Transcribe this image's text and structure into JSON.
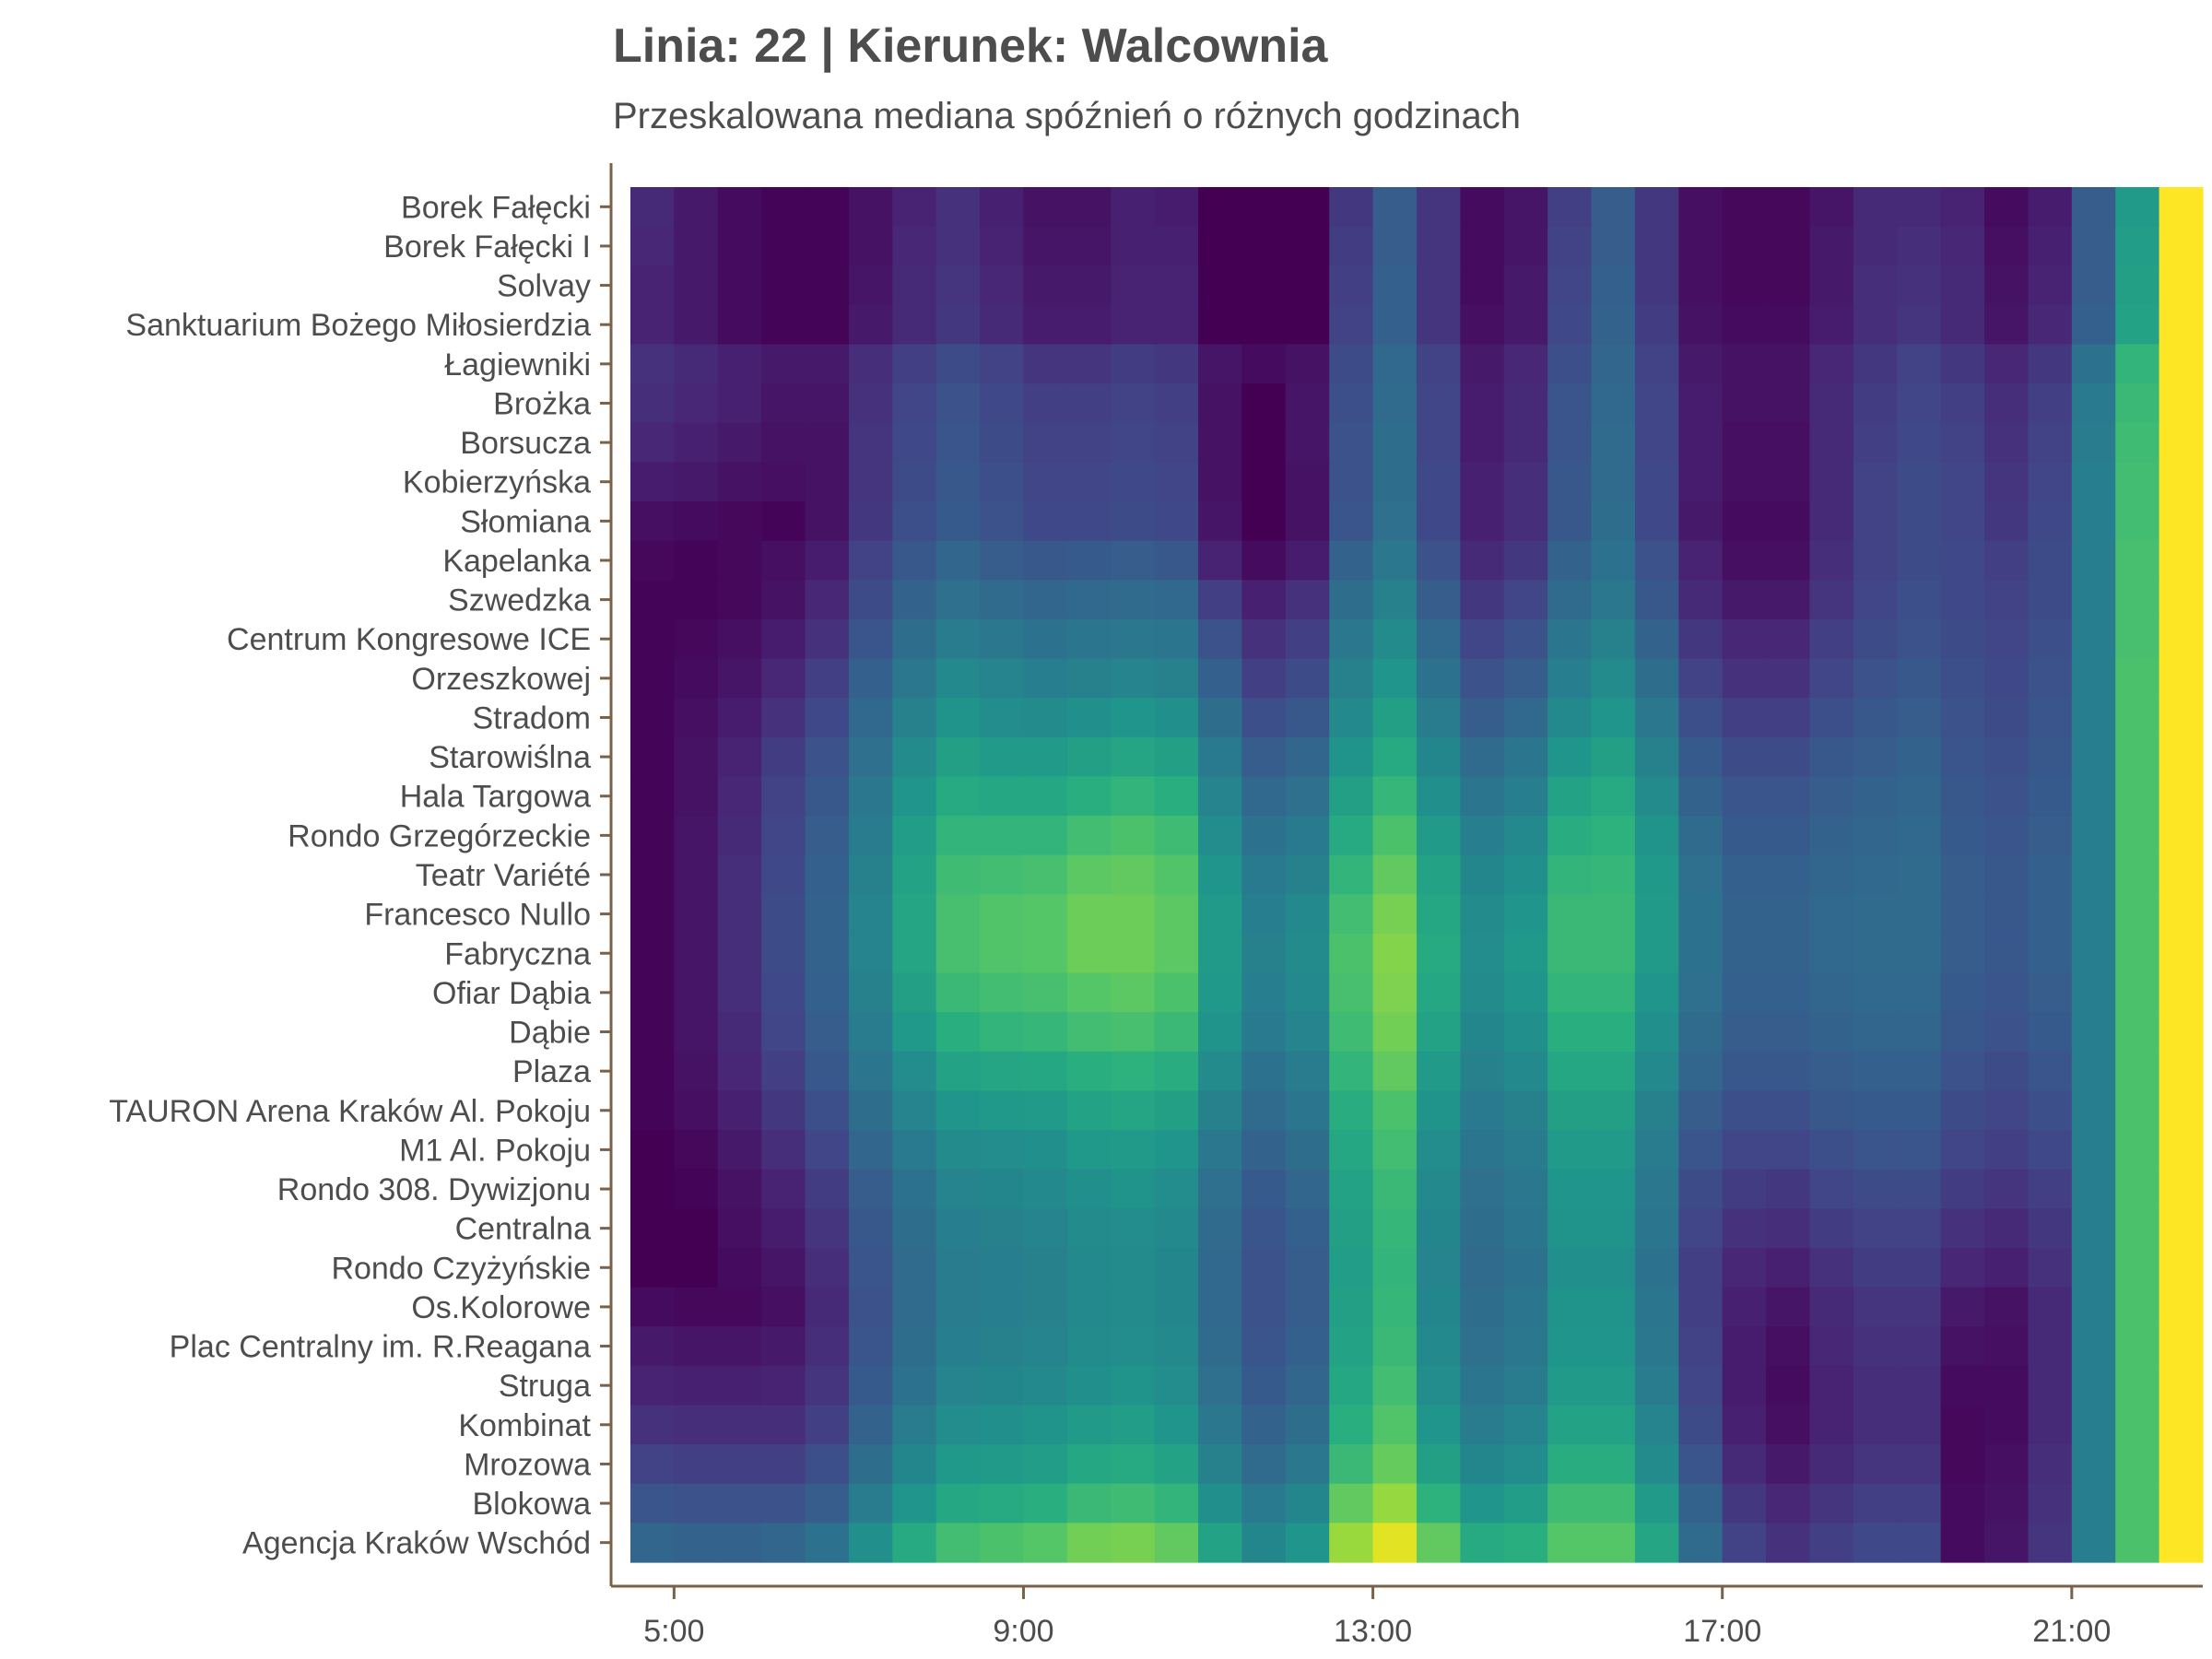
{
  "title": "Linia: 22 | Kierunek: Walcownia",
  "subtitle": "Przeskalowana mediana spóźnień o różnych godzinach",
  "colors": {
    "axis": "#7a6148",
    "text": "#4d4d4d",
    "colormap": "viridis"
  },
  "chart_data": {
    "type": "heatmap",
    "title": "Linia: 22 | Kierunek: Walcownia",
    "subtitle": "Przeskalowana mediana spóźnień o różnych godzinach",
    "xlabel": "",
    "ylabel": "",
    "x_start_hour": 4.5,
    "x_step_hours": 0.5,
    "xlim": [
      4.3,
      22.5
    ],
    "x_ticks": [
      5,
      9,
      13,
      17,
      21
    ],
    "x_tick_labels": [
      "5:00",
      "9:00",
      "13:00",
      "17:00",
      "21:00"
    ],
    "stops": [
      "Borek Fałęcki",
      "Borek Fałęcki I",
      "Solvay",
      "Sanktuarium Bożego Miłosierdzia",
      "Łagiewniki",
      "Brożka",
      "Borsucza",
      "Kobierzyńska",
      "Słomiana",
      "Kapelanka",
      "Szwedzka",
      "Centrum Kongresowe ICE",
      "Orzeszkowej",
      "Stradom",
      "Starowiślna",
      "Hala Targowa",
      "Rondo Grzegórzeckie",
      "Teatr Variété",
      "Francesco Nullo",
      "Fabryczna",
      "Ofiar Dąbia",
      "Dąbie",
      "Plaza",
      "TAURON Arena Kraków Al. Pokoju",
      "M1 Al. Pokoju",
      "Rondo 308. Dywizjonu",
      "Centralna",
      "Rondo Czyżyńskie",
      "Os.Kolorowe",
      "Plac Centralny im. R.Reagana",
      "Struga",
      "Kombinat",
      "Mrozowa",
      "Blokowa",
      "Agencja Kraków Wschód"
    ],
    "value_range": [
      0,
      1
    ],
    "values": [
      [
        0.12,
        0.07,
        0.03,
        0.01,
        0.01,
        0.05,
        0.1,
        0.14,
        0.09,
        0.05,
        0.05,
        0.09,
        0.08,
        0.0,
        0.0,
        0.0,
        0.16,
        0.28,
        0.15,
        0.03,
        0.06,
        0.18,
        0.28,
        0.16,
        0.04,
        0.02,
        0.02,
        0.06,
        0.12,
        0.12,
        0.1,
        0.03,
        0.08,
        0.28,
        0.52,
        1.0
      ],
      [
        0.11,
        0.07,
        0.03,
        0.01,
        0.01,
        0.05,
        0.11,
        0.14,
        0.1,
        0.06,
        0.06,
        0.09,
        0.09,
        0.0,
        0.0,
        0.0,
        0.17,
        0.28,
        0.15,
        0.03,
        0.06,
        0.19,
        0.28,
        0.16,
        0.04,
        0.02,
        0.02,
        0.07,
        0.12,
        0.13,
        0.11,
        0.04,
        0.09,
        0.28,
        0.53,
        1.0
      ],
      [
        0.1,
        0.07,
        0.03,
        0.01,
        0.01,
        0.06,
        0.12,
        0.15,
        0.11,
        0.07,
        0.07,
        0.1,
        0.1,
        0.0,
        0.0,
        0.0,
        0.18,
        0.29,
        0.15,
        0.03,
        0.07,
        0.2,
        0.29,
        0.16,
        0.04,
        0.02,
        0.02,
        0.07,
        0.13,
        0.14,
        0.12,
        0.05,
        0.1,
        0.28,
        0.54,
        1.0
      ],
      [
        0.1,
        0.07,
        0.03,
        0.01,
        0.01,
        0.07,
        0.12,
        0.16,
        0.12,
        0.08,
        0.08,
        0.1,
        0.1,
        0.0,
        0.0,
        0.0,
        0.19,
        0.29,
        0.15,
        0.04,
        0.07,
        0.21,
        0.3,
        0.17,
        0.05,
        0.03,
        0.03,
        0.08,
        0.13,
        0.15,
        0.12,
        0.06,
        0.11,
        0.29,
        0.55,
        1.0
      ],
      [
        0.14,
        0.12,
        0.09,
        0.07,
        0.07,
        0.13,
        0.18,
        0.22,
        0.19,
        0.15,
        0.15,
        0.17,
        0.16,
        0.06,
        0.03,
        0.05,
        0.22,
        0.32,
        0.19,
        0.07,
        0.11,
        0.23,
        0.31,
        0.19,
        0.07,
        0.05,
        0.05,
        0.11,
        0.16,
        0.19,
        0.16,
        0.11,
        0.16,
        0.36,
        0.62,
        1.0
      ],
      [
        0.13,
        0.11,
        0.09,
        0.06,
        0.06,
        0.14,
        0.2,
        0.24,
        0.21,
        0.18,
        0.18,
        0.19,
        0.18,
        0.05,
        0.0,
        0.06,
        0.23,
        0.33,
        0.2,
        0.08,
        0.12,
        0.25,
        0.32,
        0.2,
        0.08,
        0.05,
        0.05,
        0.12,
        0.17,
        0.2,
        0.18,
        0.13,
        0.18,
        0.39,
        0.64,
        1.0
      ],
      [
        0.11,
        0.09,
        0.07,
        0.05,
        0.05,
        0.15,
        0.21,
        0.25,
        0.22,
        0.19,
        0.19,
        0.2,
        0.19,
        0.05,
        0.0,
        0.06,
        0.24,
        0.34,
        0.2,
        0.08,
        0.12,
        0.25,
        0.33,
        0.2,
        0.08,
        0.04,
        0.04,
        0.12,
        0.18,
        0.21,
        0.19,
        0.14,
        0.19,
        0.4,
        0.65,
        1.0
      ],
      [
        0.08,
        0.07,
        0.05,
        0.04,
        0.05,
        0.15,
        0.22,
        0.26,
        0.23,
        0.2,
        0.2,
        0.21,
        0.2,
        0.05,
        0.0,
        0.05,
        0.24,
        0.34,
        0.21,
        0.09,
        0.13,
        0.26,
        0.33,
        0.21,
        0.08,
        0.04,
        0.04,
        0.12,
        0.19,
        0.22,
        0.2,
        0.15,
        0.2,
        0.41,
        0.66,
        1.0
      ],
      [
        0.04,
        0.03,
        0.02,
        0.01,
        0.05,
        0.16,
        0.23,
        0.27,
        0.24,
        0.21,
        0.21,
        0.22,
        0.21,
        0.06,
        0.0,
        0.05,
        0.25,
        0.35,
        0.21,
        0.09,
        0.13,
        0.26,
        0.34,
        0.21,
        0.07,
        0.03,
        0.03,
        0.12,
        0.19,
        0.22,
        0.2,
        0.16,
        0.21,
        0.41,
        0.66,
        1.0
      ],
      [
        0.02,
        0.01,
        0.02,
        0.04,
        0.08,
        0.19,
        0.26,
        0.31,
        0.28,
        0.26,
        0.27,
        0.28,
        0.26,
        0.1,
        0.03,
        0.08,
        0.3,
        0.38,
        0.24,
        0.12,
        0.16,
        0.3,
        0.36,
        0.24,
        0.1,
        0.04,
        0.04,
        0.13,
        0.19,
        0.22,
        0.21,
        0.18,
        0.22,
        0.41,
        0.67,
        1.0
      ],
      [
        0.01,
        0.01,
        0.02,
        0.05,
        0.11,
        0.22,
        0.3,
        0.35,
        0.33,
        0.31,
        0.32,
        0.33,
        0.32,
        0.18,
        0.09,
        0.14,
        0.34,
        0.42,
        0.28,
        0.16,
        0.2,
        0.33,
        0.38,
        0.26,
        0.12,
        0.07,
        0.07,
        0.15,
        0.2,
        0.23,
        0.21,
        0.19,
        0.22,
        0.41,
        0.67,
        1.0
      ],
      [
        0.01,
        0.02,
        0.04,
        0.08,
        0.14,
        0.25,
        0.34,
        0.4,
        0.38,
        0.36,
        0.37,
        0.38,
        0.37,
        0.24,
        0.14,
        0.18,
        0.38,
        0.46,
        0.32,
        0.2,
        0.24,
        0.37,
        0.42,
        0.3,
        0.16,
        0.11,
        0.11,
        0.18,
        0.22,
        0.24,
        0.22,
        0.2,
        0.23,
        0.41,
        0.67,
        1.0
      ],
      [
        0.01,
        0.03,
        0.06,
        0.11,
        0.18,
        0.29,
        0.38,
        0.45,
        0.43,
        0.41,
        0.42,
        0.43,
        0.42,
        0.29,
        0.18,
        0.22,
        0.42,
        0.5,
        0.36,
        0.24,
        0.28,
        0.41,
        0.46,
        0.34,
        0.19,
        0.14,
        0.14,
        0.2,
        0.24,
        0.26,
        0.23,
        0.21,
        0.24,
        0.41,
        0.68,
        1.0
      ],
      [
        0.01,
        0.04,
        0.08,
        0.14,
        0.21,
        0.32,
        0.42,
        0.49,
        0.47,
        0.46,
        0.48,
        0.5,
        0.48,
        0.34,
        0.23,
        0.26,
        0.45,
        0.54,
        0.4,
        0.28,
        0.32,
        0.45,
        0.5,
        0.38,
        0.23,
        0.18,
        0.18,
        0.23,
        0.26,
        0.28,
        0.24,
        0.22,
        0.25,
        0.41,
        0.68,
        1.0
      ],
      [
        0.01,
        0.05,
        0.1,
        0.17,
        0.24,
        0.35,
        0.46,
        0.54,
        0.52,
        0.52,
        0.54,
        0.56,
        0.54,
        0.39,
        0.28,
        0.31,
        0.49,
        0.58,
        0.44,
        0.33,
        0.37,
        0.5,
        0.54,
        0.42,
        0.27,
        0.22,
        0.22,
        0.26,
        0.28,
        0.3,
        0.25,
        0.23,
        0.26,
        0.41,
        0.68,
        1.0
      ],
      [
        0.01,
        0.05,
        0.11,
        0.19,
        0.26,
        0.38,
        0.5,
        0.58,
        0.57,
        0.57,
        0.6,
        0.62,
        0.6,
        0.43,
        0.32,
        0.35,
        0.54,
        0.63,
        0.48,
        0.37,
        0.41,
        0.55,
        0.58,
        0.46,
        0.3,
        0.25,
        0.25,
        0.28,
        0.3,
        0.31,
        0.26,
        0.24,
        0.27,
        0.41,
        0.68,
        1.0
      ],
      [
        0.01,
        0.06,
        0.12,
        0.2,
        0.28,
        0.4,
        0.53,
        0.62,
        0.62,
        0.62,
        0.66,
        0.68,
        0.65,
        0.47,
        0.36,
        0.39,
        0.58,
        0.68,
        0.52,
        0.41,
        0.45,
        0.59,
        0.61,
        0.49,
        0.33,
        0.27,
        0.27,
        0.3,
        0.31,
        0.32,
        0.27,
        0.25,
        0.28,
        0.41,
        0.68,
        1.0
      ],
      [
        0.01,
        0.06,
        0.13,
        0.21,
        0.29,
        0.42,
        0.55,
        0.65,
        0.66,
        0.67,
        0.71,
        0.72,
        0.69,
        0.5,
        0.39,
        0.42,
        0.62,
        0.72,
        0.55,
        0.44,
        0.48,
        0.62,
        0.63,
        0.51,
        0.35,
        0.29,
        0.29,
        0.31,
        0.32,
        0.33,
        0.28,
        0.26,
        0.29,
        0.41,
        0.68,
        1.0
      ],
      [
        0.01,
        0.06,
        0.13,
        0.22,
        0.3,
        0.43,
        0.56,
        0.67,
        0.69,
        0.7,
        0.74,
        0.74,
        0.71,
        0.52,
        0.41,
        0.45,
        0.66,
        0.76,
        0.57,
        0.46,
        0.5,
        0.64,
        0.64,
        0.52,
        0.36,
        0.3,
        0.3,
        0.32,
        0.33,
        0.33,
        0.28,
        0.26,
        0.29,
        0.41,
        0.68,
        1.0
      ],
      [
        0.01,
        0.06,
        0.13,
        0.22,
        0.3,
        0.43,
        0.56,
        0.67,
        0.69,
        0.7,
        0.74,
        0.74,
        0.71,
        0.52,
        0.42,
        0.46,
        0.68,
        0.78,
        0.58,
        0.47,
        0.51,
        0.64,
        0.64,
        0.52,
        0.36,
        0.3,
        0.3,
        0.32,
        0.33,
        0.33,
        0.28,
        0.26,
        0.29,
        0.41,
        0.68,
        1.0
      ],
      [
        0.01,
        0.06,
        0.13,
        0.21,
        0.29,
        0.42,
        0.54,
        0.64,
        0.66,
        0.67,
        0.7,
        0.71,
        0.68,
        0.51,
        0.41,
        0.45,
        0.67,
        0.77,
        0.57,
        0.46,
        0.5,
        0.62,
        0.62,
        0.5,
        0.35,
        0.29,
        0.29,
        0.31,
        0.32,
        0.32,
        0.27,
        0.25,
        0.28,
        0.41,
        0.68,
        1.0
      ],
      [
        0.01,
        0.06,
        0.12,
        0.2,
        0.28,
        0.4,
        0.51,
        0.6,
        0.62,
        0.63,
        0.66,
        0.67,
        0.64,
        0.49,
        0.39,
        0.43,
        0.65,
        0.75,
        0.55,
        0.44,
        0.48,
        0.6,
        0.6,
        0.48,
        0.33,
        0.28,
        0.28,
        0.3,
        0.31,
        0.31,
        0.26,
        0.24,
        0.27,
        0.41,
        0.68,
        1.0
      ],
      [
        0.01,
        0.05,
        0.11,
        0.18,
        0.26,
        0.37,
        0.47,
        0.55,
        0.56,
        0.57,
        0.6,
        0.61,
        0.59,
        0.46,
        0.36,
        0.4,
        0.62,
        0.72,
        0.52,
        0.42,
        0.45,
        0.57,
        0.57,
        0.45,
        0.31,
        0.26,
        0.26,
        0.28,
        0.29,
        0.29,
        0.24,
        0.22,
        0.25,
        0.41,
        0.68,
        1.0
      ],
      [
        0.01,
        0.04,
        0.09,
        0.16,
        0.23,
        0.34,
        0.43,
        0.5,
        0.51,
        0.52,
        0.55,
        0.56,
        0.54,
        0.42,
        0.33,
        0.37,
        0.59,
        0.68,
        0.49,
        0.39,
        0.42,
        0.54,
        0.54,
        0.42,
        0.28,
        0.23,
        0.23,
        0.26,
        0.27,
        0.27,
        0.22,
        0.2,
        0.23,
        0.41,
        0.68,
        1.0
      ],
      [
        0.0,
        0.02,
        0.07,
        0.13,
        0.2,
        0.31,
        0.39,
        0.46,
        0.47,
        0.48,
        0.51,
        0.52,
        0.5,
        0.38,
        0.3,
        0.34,
        0.57,
        0.66,
        0.47,
        0.37,
        0.4,
        0.52,
        0.52,
        0.4,
        0.25,
        0.2,
        0.2,
        0.23,
        0.25,
        0.25,
        0.2,
        0.18,
        0.21,
        0.41,
        0.68,
        1.0
      ],
      [
        0.0,
        0.01,
        0.05,
        0.1,
        0.17,
        0.28,
        0.36,
        0.43,
        0.44,
        0.45,
        0.48,
        0.49,
        0.47,
        0.35,
        0.27,
        0.31,
        0.55,
        0.64,
        0.45,
        0.35,
        0.38,
        0.5,
        0.5,
        0.38,
        0.22,
        0.17,
        0.16,
        0.2,
        0.22,
        0.22,
        0.17,
        0.15,
        0.18,
        0.41,
        0.68,
        1.0
      ],
      [
        0.0,
        0.0,
        0.04,
        0.08,
        0.15,
        0.26,
        0.34,
        0.41,
        0.42,
        0.43,
        0.46,
        0.47,
        0.45,
        0.33,
        0.25,
        0.29,
        0.54,
        0.63,
        0.44,
        0.34,
        0.37,
        0.49,
        0.49,
        0.37,
        0.2,
        0.14,
        0.13,
        0.17,
        0.19,
        0.19,
        0.14,
        0.12,
        0.16,
        0.41,
        0.68,
        1.0
      ],
      [
        0.0,
        0.0,
        0.03,
        0.06,
        0.13,
        0.25,
        0.33,
        0.4,
        0.41,
        0.42,
        0.45,
        0.46,
        0.44,
        0.32,
        0.24,
        0.28,
        0.53,
        0.62,
        0.43,
        0.33,
        0.36,
        0.48,
        0.48,
        0.36,
        0.18,
        0.11,
        0.09,
        0.14,
        0.17,
        0.17,
        0.11,
        0.09,
        0.14,
        0.41,
        0.68,
        1.0
      ],
      [
        0.03,
        0.02,
        0.02,
        0.04,
        0.12,
        0.24,
        0.33,
        0.4,
        0.41,
        0.42,
        0.45,
        0.46,
        0.44,
        0.32,
        0.24,
        0.28,
        0.54,
        0.63,
        0.44,
        0.34,
        0.37,
        0.49,
        0.49,
        0.37,
        0.18,
        0.09,
        0.06,
        0.12,
        0.15,
        0.15,
        0.07,
        0.05,
        0.12,
        0.41,
        0.68,
        1.0
      ],
      [
        0.07,
        0.06,
        0.06,
        0.07,
        0.13,
        0.25,
        0.34,
        0.41,
        0.42,
        0.43,
        0.46,
        0.47,
        0.45,
        0.33,
        0.25,
        0.29,
        0.55,
        0.64,
        0.45,
        0.35,
        0.38,
        0.5,
        0.5,
        0.38,
        0.19,
        0.08,
        0.04,
        0.11,
        0.14,
        0.14,
        0.05,
        0.04,
        0.12,
        0.41,
        0.68,
        1.0
      ],
      [
        0.1,
        0.09,
        0.09,
        0.1,
        0.15,
        0.27,
        0.36,
        0.43,
        0.44,
        0.45,
        0.48,
        0.49,
        0.47,
        0.35,
        0.27,
        0.31,
        0.57,
        0.66,
        0.47,
        0.37,
        0.4,
        0.52,
        0.52,
        0.4,
        0.2,
        0.08,
        0.03,
        0.1,
        0.13,
        0.13,
        0.03,
        0.03,
        0.12,
        0.41,
        0.68,
        1.0
      ],
      [
        0.14,
        0.13,
        0.13,
        0.13,
        0.18,
        0.3,
        0.4,
        0.47,
        0.48,
        0.49,
        0.52,
        0.53,
        0.5,
        0.38,
        0.3,
        0.34,
        0.6,
        0.69,
        0.5,
        0.4,
        0.43,
        0.55,
        0.55,
        0.43,
        0.22,
        0.09,
        0.04,
        0.1,
        0.13,
        0.13,
        0.02,
        0.03,
        0.12,
        0.41,
        0.68,
        1.0
      ],
      [
        0.19,
        0.18,
        0.18,
        0.18,
        0.23,
        0.34,
        0.44,
        0.51,
        0.52,
        0.53,
        0.57,
        0.58,
        0.55,
        0.42,
        0.33,
        0.38,
        0.64,
        0.73,
        0.54,
        0.44,
        0.47,
        0.59,
        0.59,
        0.46,
        0.25,
        0.12,
        0.07,
        0.12,
        0.15,
        0.15,
        0.02,
        0.04,
        0.13,
        0.41,
        0.68,
        1.0
      ],
      [
        0.25,
        0.24,
        0.24,
        0.24,
        0.28,
        0.4,
        0.5,
        0.57,
        0.58,
        0.6,
        0.64,
        0.65,
        0.62,
        0.48,
        0.39,
        0.44,
        0.72,
        0.81,
        0.61,
        0.5,
        0.53,
        0.65,
        0.65,
        0.52,
        0.3,
        0.16,
        0.11,
        0.15,
        0.18,
        0.18,
        0.03,
        0.05,
        0.14,
        0.41,
        0.68,
        1.0
      ],
      [
        0.31,
        0.3,
        0.3,
        0.31,
        0.36,
        0.48,
        0.58,
        0.66,
        0.68,
        0.7,
        0.75,
        0.76,
        0.72,
        0.55,
        0.44,
        0.5,
        0.82,
        0.95,
        0.72,
        0.58,
        0.6,
        0.7,
        0.7,
        0.56,
        0.33,
        0.19,
        0.14,
        0.18,
        0.21,
        0.21,
        0.03,
        0.06,
        0.15,
        0.41,
        0.68,
        1.0
      ]
    ]
  }
}
